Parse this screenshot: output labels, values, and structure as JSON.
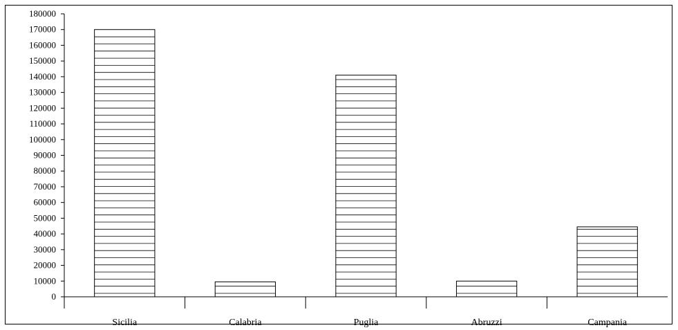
{
  "chart_data": {
    "type": "bar",
    "categories": [
      "Sicilia",
      "Calabria",
      "Puglia",
      "Abruzzi",
      "Campania"
    ],
    "values": [
      170000,
      9500,
      141000,
      10000,
      44500
    ],
    "title": "",
    "xlabel": "",
    "ylabel": "",
    "ylim": [
      0,
      180000
    ],
    "yticks": [
      0,
      10000,
      20000,
      30000,
      40000,
      50000,
      60000,
      70000,
      80000,
      90000,
      100000,
      110000,
      120000,
      130000,
      140000,
      150000,
      160000,
      170000,
      180000
    ],
    "grid": false,
    "legend": "none",
    "bar_fill": "horizontal-hatch",
    "colors": {
      "stroke": "#000000",
      "fill": "#ffffff"
    }
  }
}
